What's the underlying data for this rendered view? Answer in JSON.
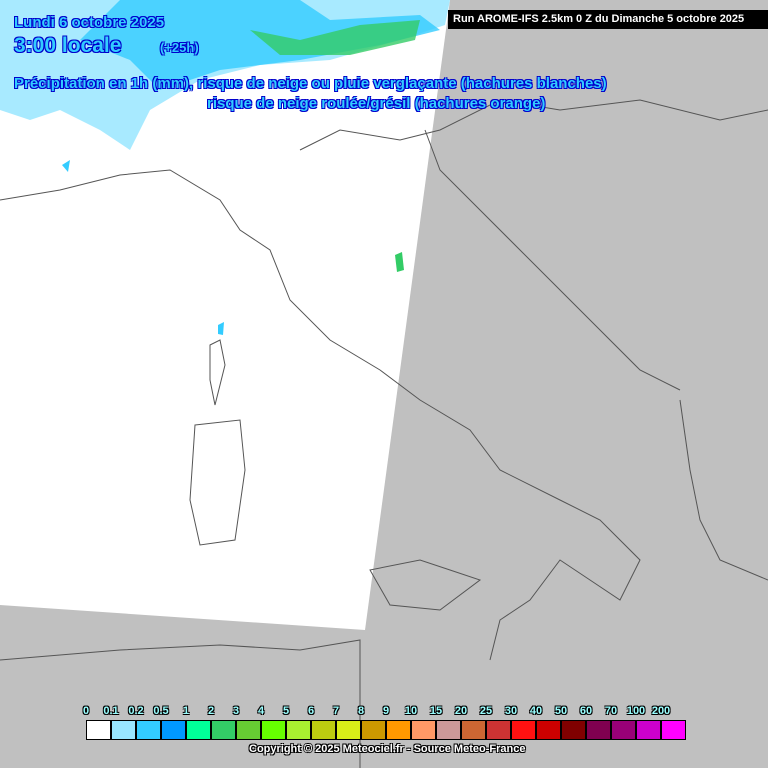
{
  "header": {
    "date": "Lundi 6 octobre 2025",
    "time": "3:00 locale",
    "lead": "(+25h)",
    "description_line1": "Précipitation en 1h (mm), risque de neige ou pluie verglaçante (hachures blanches)",
    "description_line2": "risque de neige roulée/grésil (hachures orange)",
    "run": "Run AROME-IFS 2.5km 0 Z du Dimanche 5 octobre 2025"
  },
  "legend": {
    "labels": [
      "0",
      "0.1",
      "0.2",
      "0.5",
      "1",
      "2",
      "3",
      "4",
      "5",
      "6",
      "7",
      "8",
      "9",
      "10",
      "15",
      "20",
      "25",
      "30",
      "40",
      "50",
      "60",
      "70",
      "100",
      "200"
    ],
    "colors": [
      "#ffffff",
      "#99e6ff",
      "#33ccff",
      "#0099ff",
      "#00ff99",
      "#33cc66",
      "#66cc33",
      "#66ff00",
      "#a8f030",
      "#bccc10",
      "#d8ee18",
      "#cc9900",
      "#ff9900",
      "#ff9966",
      "#cc9999",
      "#cc6633",
      "#cc3333",
      "#ff1111",
      "#cc0000",
      "#800000",
      "#800050",
      "#990077",
      "#cc00cc",
      "#ff00ff"
    ]
  },
  "footer": {
    "copyright": "Copyright © 2025 Meteociel.fr - Source Meteo-France"
  },
  "colors": {
    "domain_fill": "#ffffff",
    "outside_domain": "#c0c0c0",
    "title_text": "#33ccff"
  }
}
